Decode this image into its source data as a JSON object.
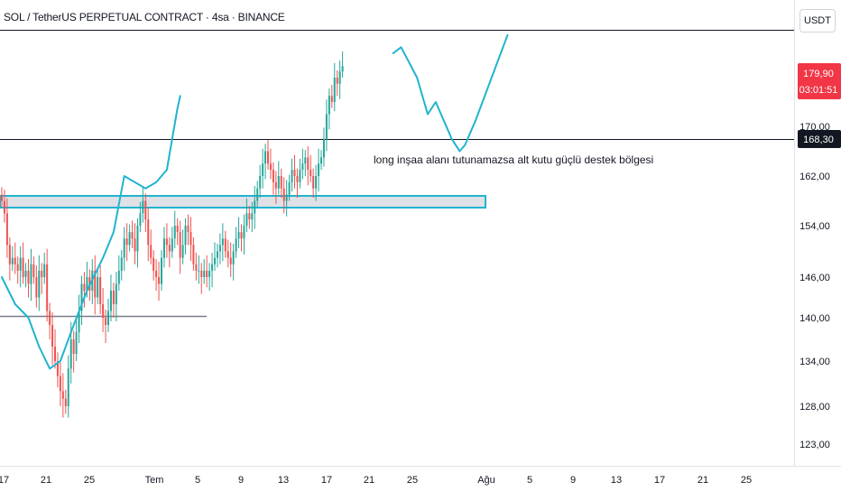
{
  "header": {
    "title": "SOL / TetherUS PERPETUAL CONTRACT · 4sa · BINANCE",
    "currency": "USDT"
  },
  "colors": {
    "up": "#26a69a",
    "down": "#ef5350",
    "drawing": "#20b4cf",
    "box_fill": "#d1d4dc",
    "line": "#131722",
    "grid_text": "#131722"
  },
  "chart_data": {
    "type": "candlestick",
    "ylim": [
      120,
      186
    ],
    "y_ticks": [
      "123,00",
      "128,00",
      "134,00",
      "140,00",
      "146,00",
      "154,00",
      "162,00",
      "170,00"
    ],
    "x_ticks": [
      "17",
      "21",
      "25",
      "Tem",
      "5",
      "9",
      "13",
      "17",
      "21",
      "25",
      "Ağu",
      "5",
      "9",
      "13",
      "17",
      "21",
      "25"
    ],
    "price_badge": {
      "value": "179,90",
      "countdown": "03:01:51"
    },
    "level_badge": {
      "value": "168,30"
    },
    "annotation": "long inşaa alanı tutunamazsa alt kutu güçlü destek bölgesi",
    "levels": [
      {
        "price": 168.3,
        "label": "168,30"
      },
      {
        "price": 140.8
      }
    ],
    "zone": {
      "top": 159.4,
      "bottom": 157.5
    },
    "closes": [
      158,
      156,
      151,
      148,
      149,
      148,
      147,
      149,
      146,
      147,
      145,
      148,
      146,
      143,
      147,
      146,
      148,
      141,
      139,
      136,
      134,
      132,
      130,
      129,
      128,
      133,
      137,
      135,
      138,
      141,
      145,
      144,
      146,
      144,
      147,
      143,
      146,
      142,
      140,
      139,
      141,
      144,
      142,
      145,
      147,
      149,
      152,
      151,
      153,
      152,
      150,
      154,
      156,
      158,
      155,
      151,
      149,
      147,
      146,
      145,
      149,
      152,
      151,
      150,
      152,
      154,
      153,
      149,
      151,
      154,
      153,
      151,
      148,
      147,
      147,
      146,
      147,
      146,
      147,
      148,
      149,
      150,
      151,
      152,
      150,
      149,
      148,
      150,
      152,
      153,
      152,
      154,
      156,
      155,
      156,
      158,
      160,
      162,
      164,
      166,
      164,
      163,
      161,
      160,
      162,
      160,
      158,
      159,
      161,
      163,
      162,
      161,
      163,
      164,
      165,
      163,
      162,
      160,
      162,
      164,
      165,
      168,
      172,
      175,
      174,
      178,
      177,
      179,
      179.9
    ],
    "drawing_paths": [
      [
        [
          0,
          146
        ],
        [
          5,
          142
        ],
        [
          10,
          140
        ],
        [
          14,
          136
        ],
        [
          18,
          133
        ],
        [
          22,
          134
        ],
        [
          26,
          138
        ],
        [
          32,
          144
        ],
        [
          38,
          149
        ],
        [
          42,
          153
        ],
        [
          46,
          162
        ],
        [
          50,
          161
        ],
        [
          54,
          160
        ],
        [
          58,
          161
        ],
        [
          62,
          163
        ],
        [
          66,
          173
        ],
        [
          67,
          175
        ]
      ],
      [
        [
          147,
          182
        ],
        [
          150,
          183
        ],
        [
          156,
          178
        ],
        [
          160,
          172
        ],
        [
          163,
          174
        ],
        [
          166,
          171
        ],
        [
          169,
          168
        ],
        [
          172,
          166
        ],
        [
          174,
          167
        ],
        [
          178,
          171
        ],
        [
          184,
          178
        ],
        [
          190,
          185
        ]
      ]
    ]
  }
}
